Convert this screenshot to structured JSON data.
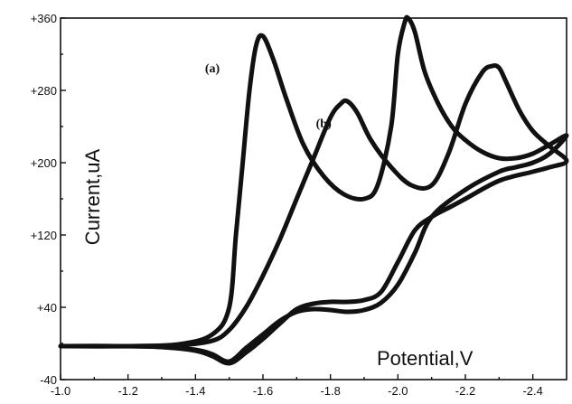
{
  "chart_data": {
    "type": "line",
    "title": "",
    "xlabel": "Potential,V",
    "ylabel": "Current,uA",
    "xlim": [
      -1.0,
      -2.5
    ],
    "ylim": [
      -40,
      360
    ],
    "x_ticks": [
      -1.0,
      -1.2,
      -1.4,
      -1.6,
      -1.8,
      -2.0,
      -2.2,
      -2.4
    ],
    "x_tick_labels": [
      "-1.0",
      "-1.2",
      "-1.4",
      "-1.6",
      "-1.8",
      "-2.0",
      "-2.2",
      "-2.4"
    ],
    "y_ticks": [
      -40,
      40,
      120,
      200,
      280,
      360
    ],
    "y_tick_labels": [
      "-40",
      "+40",
      "+120",
      "+200",
      "+280",
      "+360"
    ],
    "grid": false,
    "line_color": "#111111",
    "annotations": [
      {
        "text": "(a)",
        "x": -1.45,
        "y": 300
      },
      {
        "text": "(b)",
        "x": -1.78,
        "y": 239
      }
    ],
    "series": [
      {
        "x": [
          -1.0,
          -1.2,
          -1.35,
          -1.45,
          -1.5,
          -1.52,
          -1.54,
          -1.56,
          -1.58,
          -1.6,
          -1.63,
          -1.67,
          -1.72,
          -1.78,
          -1.84,
          -1.9,
          -1.94,
          -1.98,
          -2.0,
          -2.02,
          -2.03,
          -2.05,
          -2.08,
          -2.12,
          -2.16,
          -2.2,
          -2.25,
          -2.3,
          -2.35,
          -2.4,
          -2.45,
          -2.5,
          -2.45,
          -2.4,
          -2.35,
          -2.3,
          -2.2,
          -2.1,
          -2.05,
          -2.0,
          -1.95,
          -1.9,
          -1.85,
          -1.8,
          -1.75,
          -1.7,
          -1.65,
          -1.6,
          -1.55,
          -1.5,
          -1.45,
          -1.4,
          -1.3,
          -1.2,
          -1.0
        ],
        "y": [
          -3,
          -3,
          -1,
          10,
          40,
          120,
          200,
          280,
          330,
          340,
          315,
          270,
          220,
          185,
          165,
          160,
          175,
          240,
          320,
          355,
          360,
          345,
          300,
          265,
          240,
          225,
          212,
          205,
          205,
          210,
          220,
          230,
          210,
          200,
          195,
          190,
          170,
          140,
          100,
          65,
          45,
          37,
          35,
          37,
          38,
          35,
          25,
          10,
          -5,
          -20,
          -12,
          -7,
          -4,
          -3,
          -3
        ]
      },
      {
        "x": [
          -1.0,
          -1.2,
          -1.35,
          -1.45,
          -1.5,
          -1.55,
          -1.6,
          -1.65,
          -1.7,
          -1.75,
          -1.8,
          -1.83,
          -1.85,
          -1.88,
          -1.92,
          -1.98,
          -2.04,
          -2.1,
          -2.15,
          -2.2,
          -2.25,
          -2.28,
          -2.3,
          -2.32,
          -2.36,
          -2.4,
          -2.45,
          -2.5,
          -2.45,
          -2.4,
          -2.3,
          -2.2,
          -2.15,
          -2.1,
          -2.05,
          -2.0,
          -1.95,
          -1.9,
          -1.85,
          -1.8,
          -1.75,
          -1.7,
          -1.65,
          -1.6,
          -1.55,
          -1.5,
          -1.45,
          -1.4,
          -1.3,
          -1.2,
          -1.0
        ],
        "y": [
          -3,
          -3,
          -2,
          3,
          15,
          40,
          75,
          115,
          160,
          205,
          250,
          265,
          268,
          255,
          225,
          195,
          175,
          175,
          210,
          265,
          300,
          307,
          305,
          290,
          258,
          235,
          218,
          202,
          195,
          190,
          180,
          160,
          150,
          140,
          125,
          90,
          57,
          48,
          46,
          46,
          44,
          38,
          22,
          5,
          -10,
          -22,
          -14,
          -8,
          -4,
          -3,
          -3
        ]
      }
    ]
  }
}
